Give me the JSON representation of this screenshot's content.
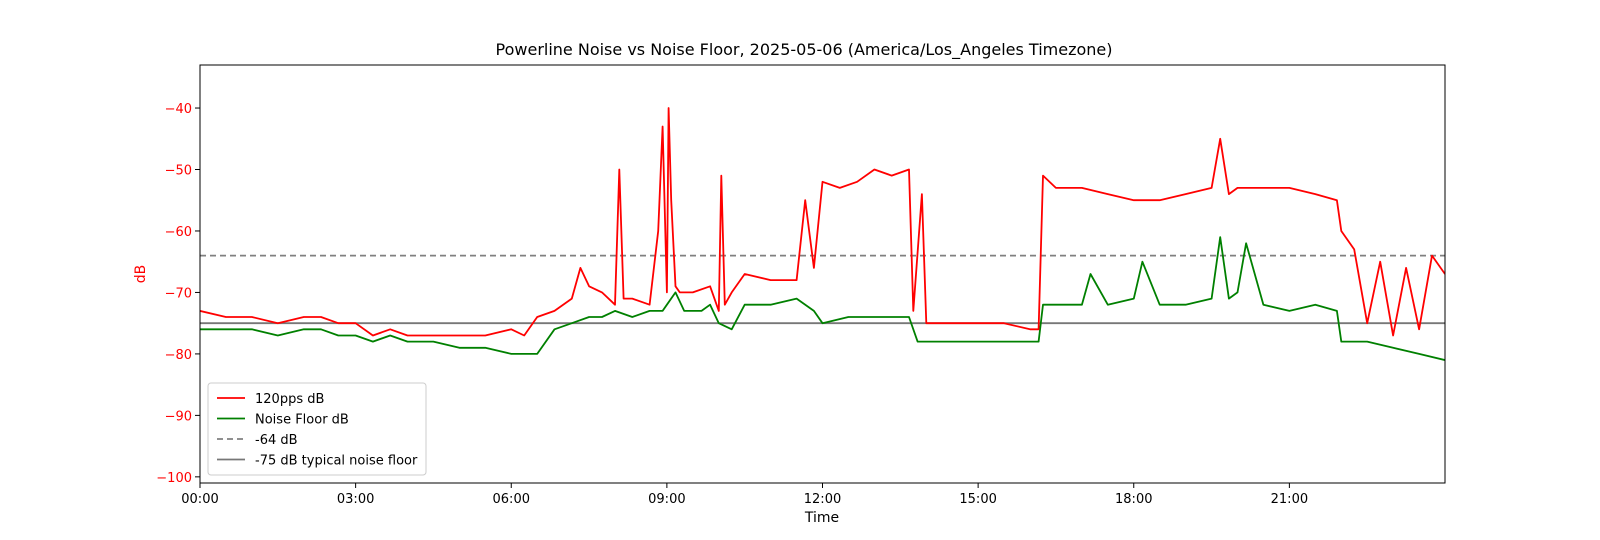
{
  "chart_data": {
    "type": "line",
    "title": "Powerline Noise vs Noise Floor, 2025-05-06 (America/Los_Angeles Timezone)",
    "xlabel": "Time",
    "ylabel": "dB",
    "ylabel_color": "#ff0000",
    "ytick_color": "#ff0000",
    "xlim": [
      "00:00",
      "24:00"
    ],
    "ylim": [
      -101,
      -33
    ],
    "xticks": [
      "00:00",
      "03:00",
      "06:00",
      "09:00",
      "12:00",
      "15:00",
      "18:00",
      "21:00"
    ],
    "yticks": [
      -40,
      -50,
      -60,
      -70,
      -80,
      -90,
      -100
    ],
    "ytick_labels": [
      "−40",
      "−50",
      "−60",
      "−70",
      "−80",
      "−90",
      "−100"
    ],
    "legend_position": "lower-left",
    "series": [
      {
        "name": "120pps dB",
        "color": "#ff0000",
        "style": "solid",
        "x": [
          "00:00",
          "00:30",
          "01:00",
          "01:30",
          "02:00",
          "02:20",
          "02:40",
          "03:00",
          "03:20",
          "03:40",
          "04:00",
          "04:30",
          "05:00",
          "05:30",
          "06:00",
          "06:15",
          "06:30",
          "06:50",
          "07:10",
          "07:20",
          "07:30",
          "07:45",
          "08:00",
          "08:05",
          "08:10",
          "08:20",
          "08:40",
          "08:50",
          "08:55",
          "09:00",
          "09:02",
          "09:05",
          "09:10",
          "09:15",
          "09:30",
          "09:50",
          "10:00",
          "10:03",
          "10:07",
          "10:15",
          "10:30",
          "11:00",
          "11:30",
          "11:40",
          "11:50",
          "12:00",
          "12:20",
          "12:40",
          "13:00",
          "13:20",
          "13:40",
          "13:45",
          "13:55",
          "14:00",
          "14:30",
          "15:00",
          "15:30",
          "16:00",
          "16:10",
          "16:15",
          "16:30",
          "17:00",
          "17:30",
          "18:00",
          "18:30",
          "19:00",
          "19:30",
          "19:40",
          "19:50",
          "20:00",
          "20:30",
          "21:00",
          "21:30",
          "21:55",
          "22:00",
          "22:15",
          "22:30",
          "22:45",
          "23:00",
          "23:15",
          "23:30",
          "23:45",
          "24:00"
        ],
        "values": [
          -73,
          -74,
          -74,
          -75,
          -74,
          -74,
          -75,
          -75,
          -77,
          -76,
          -77,
          -77,
          -77,
          -77,
          -76,
          -77,
          -74,
          -73,
          -71,
          -66,
          -69,
          -70,
          -72,
          -50,
          -71,
          -71,
          -72,
          -60,
          -43,
          -70,
          -40,
          -55,
          -69,
          -70,
          -70,
          -69,
          -73,
          -51,
          -72,
          -70,
          -67,
          -68,
          -68,
          -55,
          -66,
          -52,
          -53,
          -52,
          -50,
          -51,
          -50,
          -73,
          -54,
          -75,
          -75,
          -75,
          -75,
          -76,
          -76,
          -51,
          -53,
          -53,
          -54,
          -55,
          -55,
          -54,
          -53,
          -45,
          -54,
          -53,
          -53,
          -53,
          -54,
          -55,
          -60,
          -63,
          -75,
          -65,
          -77,
          -66,
          -76,
          -64,
          -67
        ]
      },
      {
        "name": "Noise Floor dB",
        "color": "#008000",
        "style": "solid",
        "x": [
          "00:00",
          "00:30",
          "01:00",
          "01:30",
          "02:00",
          "02:20",
          "02:40",
          "03:00",
          "03:20",
          "03:40",
          "04:00",
          "04:30",
          "05:00",
          "05:30",
          "06:00",
          "06:15",
          "06:30",
          "06:50",
          "07:10",
          "07:30",
          "07:45",
          "08:00",
          "08:20",
          "08:40",
          "08:55",
          "09:00",
          "09:10",
          "09:20",
          "09:40",
          "09:50",
          "10:00",
          "10:15",
          "10:30",
          "11:00",
          "11:30",
          "11:50",
          "12:00",
          "12:30",
          "13:00",
          "13:30",
          "13:40",
          "13:50",
          "14:00",
          "14:30",
          "15:00",
          "15:30",
          "16:00",
          "16:10",
          "16:15",
          "16:30",
          "17:00",
          "17:10",
          "17:30",
          "18:00",
          "18:10",
          "18:30",
          "19:00",
          "19:30",
          "19:40",
          "19:50",
          "20:00",
          "20:10",
          "20:30",
          "21:00",
          "21:30",
          "21:55",
          "22:00",
          "22:30",
          "23:00",
          "23:30",
          "24:00"
        ],
        "values": [
          -76,
          -76,
          -76,
          -77,
          -76,
          -76,
          -77,
          -77,
          -78,
          -77,
          -78,
          -78,
          -79,
          -79,
          -80,
          -80,
          -80,
          -76,
          -75,
          -74,
          -74,
          -73,
          -74,
          -73,
          -73,
          -72,
          -70,
          -73,
          -73,
          -72,
          -75,
          -76,
          -72,
          -72,
          -71,
          -73,
          -75,
          -74,
          -74,
          -74,
          -74,
          -78,
          -78,
          -78,
          -78,
          -78,
          -78,
          -78,
          -72,
          -72,
          -72,
          -67,
          -72,
          -71,
          -65,
          -72,
          -72,
          -71,
          -61,
          -71,
          -70,
          -62,
          -72,
          -73,
          -72,
          -73,
          -78,
          -78,
          -79,
          -80,
          -81
        ]
      },
      {
        "name": "-64 dB",
        "color": "#808080",
        "style": "dashed",
        "x": [
          "00:00",
          "24:00"
        ],
        "values": [
          -64,
          -64
        ]
      },
      {
        "name": "-75 dB typical noise floor",
        "color": "#777777",
        "style": "solid",
        "x": [
          "00:00",
          "24:00"
        ],
        "values": [
          -75,
          -75
        ]
      }
    ]
  }
}
